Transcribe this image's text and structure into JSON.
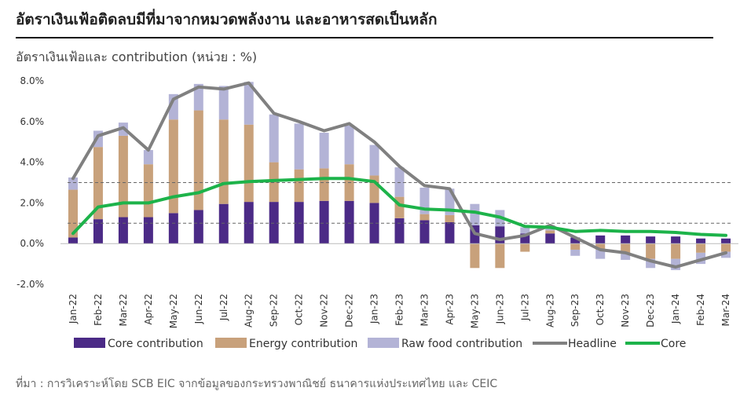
{
  "header": {
    "title": "อัตราเงินเฟ้อติดลบมีที่มาจากหมวดพลังงาน  และอาหารสดเป็นหลัก",
    "subtitle": "อัตราเงินเฟ้อและ contribution (หน่วย : %)"
  },
  "source": "ที่มา : การวิเคราะห์โดย SCB EIC จากข้อมูลของกระทรวงพาณิชย์ ธนาคารแห่งประเทศไทย และ CEIC",
  "colors": {
    "core_contribution": "#4b2a86",
    "energy_contribution": "#c8a17b",
    "raw_food_contribution": "#b3b3d6",
    "headline": "#808080",
    "core": "#1db34a",
    "target_band": "#666666"
  },
  "chart_data": {
    "type": "bar",
    "stacked": true,
    "categories": [
      "Jan-22",
      "Feb-22",
      "Mar-22",
      "Apr-22",
      "May-22",
      "Jun-22",
      "Jul-22",
      "Aug-22",
      "Sep-22",
      "Oct-22",
      "Nov-22",
      "Dec-22",
      "Jan-23",
      "Feb-23",
      "Mar-23",
      "Apr-23",
      "May-23",
      "Jun-23",
      "Jul-23",
      "Aug-23",
      "Sep-23",
      "Oct-23",
      "Nov-23",
      "Dec-23",
      "Jan-24",
      "Feb-24",
      "Mar-24"
    ],
    "ylim": [
      -2,
      8
    ],
    "yticks": [
      -2,
      0,
      2,
      4,
      6,
      8
    ],
    "ytick_labels": [
      "-2.0%",
      "0.0%",
      "2.0%",
      "4.0%",
      "6.0%",
      "8.0%"
    ],
    "reference_lines": [
      1,
      3
    ],
    "series": [
      {
        "name": "Core contribution",
        "kind": "bar",
        "values": [
          0.3,
          1.2,
          1.3,
          1.3,
          1.5,
          1.65,
          1.95,
          2.05,
          2.05,
          2.05,
          2.1,
          2.1,
          2.0,
          1.25,
          1.15,
          1.05,
          0.9,
          0.85,
          0.5,
          0.5,
          0.3,
          0.4,
          0.4,
          0.35,
          0.35,
          0.25,
          0.25
        ]
      },
      {
        "name": "Energy contribution",
        "kind": "bar",
        "values": [
          2.35,
          3.55,
          4.0,
          2.6,
          4.6,
          4.9,
          4.15,
          3.8,
          1.95,
          1.6,
          1.6,
          1.8,
          1.35,
          1.05,
          0.3,
          0.35,
          -1.2,
          -1.2,
          -0.4,
          0.15,
          -0.3,
          -0.3,
          -0.5,
          -0.75,
          -0.75,
          -0.45,
          -0.4
        ]
      },
      {
        "name": "Raw food contribution",
        "kind": "bar",
        "values": [
          0.6,
          0.8,
          0.65,
          0.7,
          1.25,
          1.3,
          1.65,
          2.1,
          2.35,
          2.25,
          1.75,
          1.9,
          1.5,
          1.45,
          1.3,
          1.3,
          1.05,
          0.8,
          0.3,
          0.25,
          -0.3,
          -0.45,
          -0.3,
          -0.45,
          -0.55,
          -0.55,
          -0.3
        ]
      },
      {
        "name": "Headline",
        "kind": "line",
        "values": [
          3.2,
          5.3,
          5.7,
          4.6,
          7.1,
          7.7,
          7.6,
          7.9,
          6.4,
          6.0,
          5.55,
          5.9,
          5.0,
          3.8,
          2.85,
          2.7,
          0.5,
          0.2,
          0.4,
          0.9,
          0.3,
          -0.3,
          -0.45,
          -0.85,
          -1.15,
          -0.8,
          -0.45
        ]
      },
      {
        "name": "Core",
        "kind": "line",
        "values": [
          0.5,
          1.8,
          2.0,
          2.0,
          2.3,
          2.5,
          2.95,
          3.05,
          3.1,
          3.15,
          3.2,
          3.2,
          3.05,
          1.9,
          1.7,
          1.65,
          1.55,
          1.3,
          0.85,
          0.8,
          0.6,
          0.65,
          0.6,
          0.6,
          0.55,
          0.45,
          0.4
        ]
      }
    ],
    "legend": [
      "Core contribution",
      "Energy contribution",
      "Raw food contribution",
      "Headline",
      "Core"
    ],
    "legend_position": "bottom",
    "grid": false
  }
}
